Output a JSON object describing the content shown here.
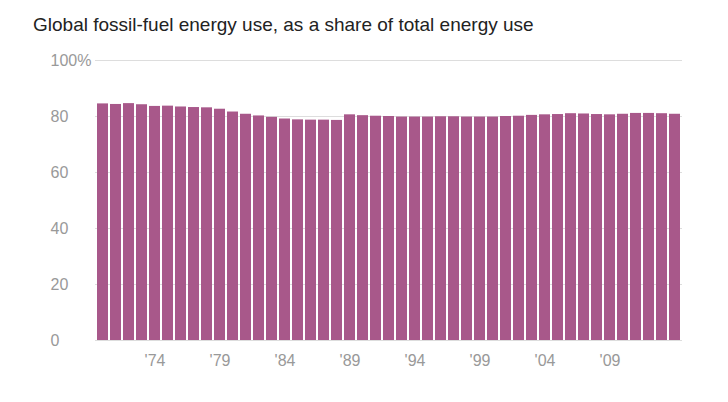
{
  "chart_data": {
    "type": "bar",
    "title": "Global fossil-fuel energy use, as a share of total energy use",
    "categories": [
      null,
      null,
      null,
      null,
      "'74",
      null,
      null,
      null,
      null,
      "'79",
      null,
      null,
      null,
      null,
      "'84",
      null,
      null,
      null,
      null,
      "'89",
      null,
      null,
      null,
      null,
      "'94",
      null,
      null,
      null,
      null,
      "'99",
      null,
      null,
      null,
      null,
      "'04",
      null,
      null,
      null,
      null,
      "'09",
      null,
      null,
      null,
      null,
      null
    ],
    "values": [
      84.5,
      84.3,
      84.6,
      84.2,
      83.6,
      83.7,
      83.4,
      83.2,
      83.1,
      82.6,
      81.6,
      80.8,
      80.2,
      79.7,
      79.1,
      78.8,
      78.7,
      78.7,
      78.6,
      80.6,
      80.3,
      80.1,
      80.0,
      79.8,
      79.8,
      79.8,
      79.9,
      79.9,
      79.8,
      79.8,
      79.8,
      80.0,
      80.1,
      80.4,
      80.6,
      80.7,
      81.0,
      80.9,
      80.7,
      80.6,
      80.8,
      81.1,
      81.1,
      81.0,
      80.8
    ],
    "color": "#a8588a",
    "ylim": [
      0,
      100
    ],
    "yticks": [
      0,
      20,
      40,
      60,
      80,
      {
        "value": 100,
        "label": "100%"
      }
    ],
    "grid": true
  }
}
